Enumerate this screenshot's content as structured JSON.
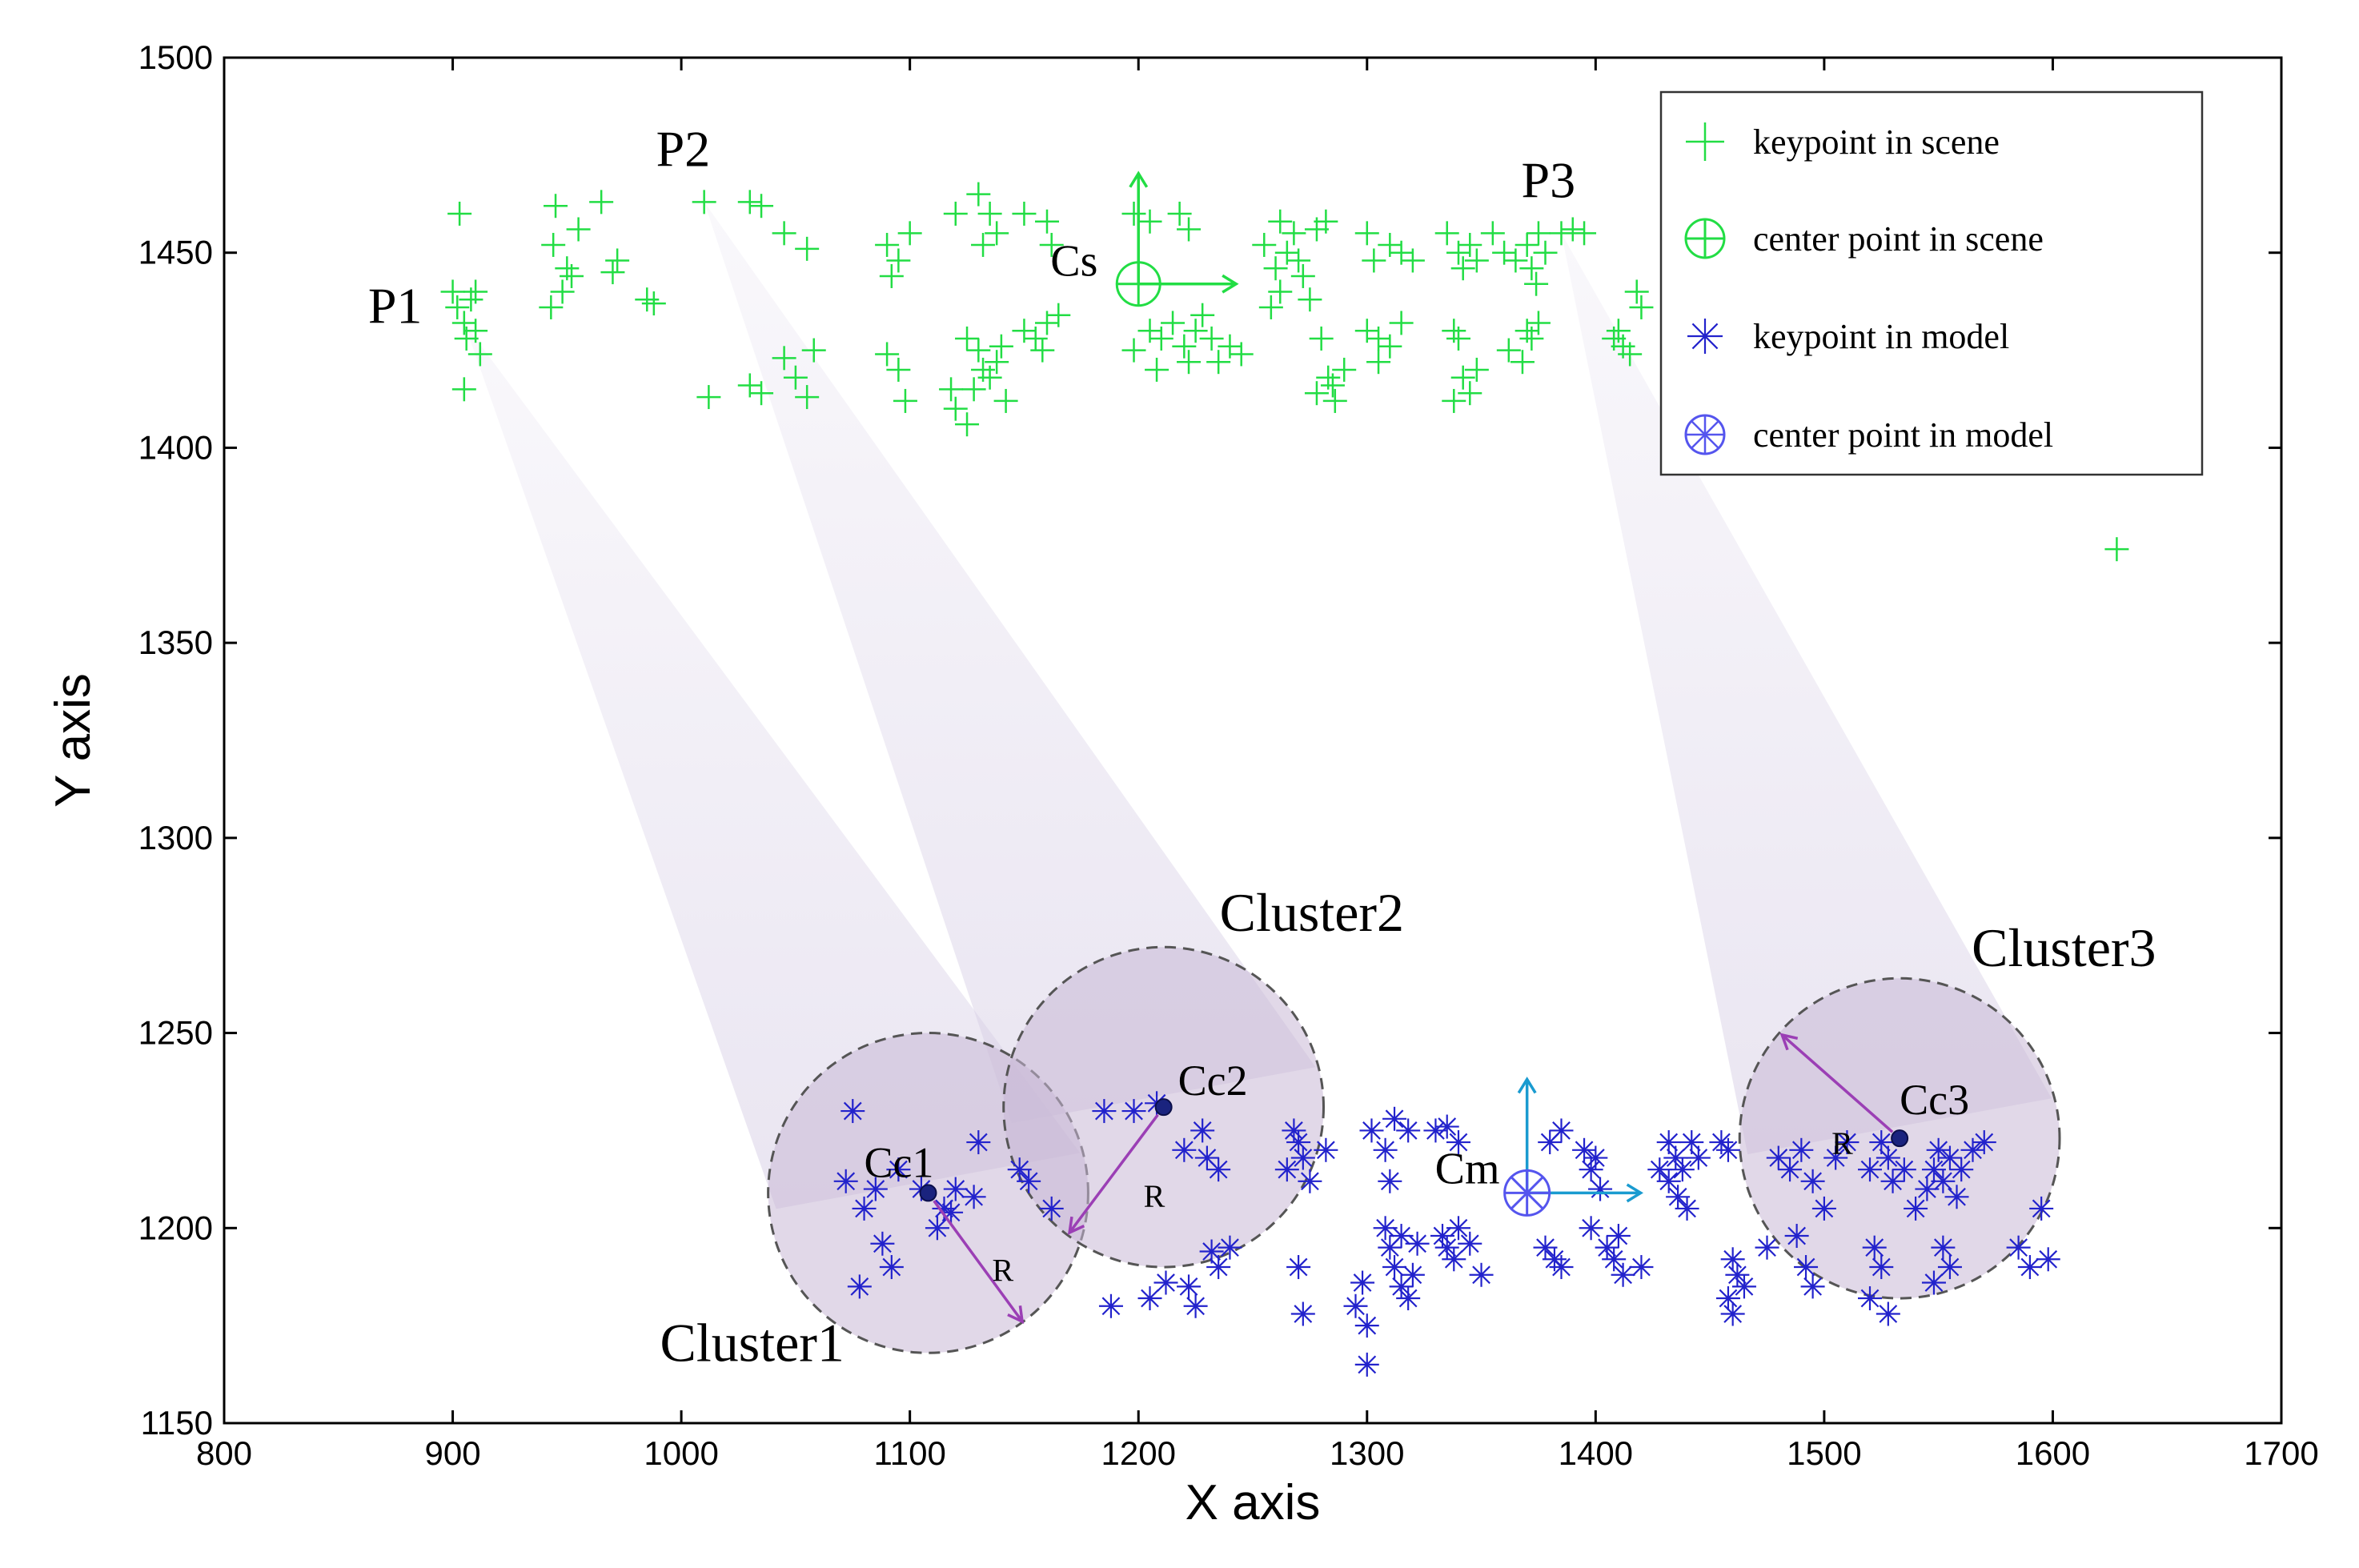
{
  "chart_data": {
    "type": "scatter",
    "xlabel": "X axis",
    "ylabel": "Y axis",
    "xlim": [
      800,
      1700
    ],
    "ylim": [
      1150,
      1500
    ],
    "xticks": [
      800,
      900,
      1000,
      1100,
      1200,
      1300,
      1400,
      1500,
      1600,
      1700
    ],
    "yticks": [
      1150,
      1200,
      1250,
      1300,
      1350,
      1400,
      1450,
      1500
    ],
    "grid": false,
    "legend": {
      "position": "top-right",
      "entries": [
        {
          "label": "keypoint in scene",
          "marker": "plus",
          "color": "#22dd44"
        },
        {
          "label": "center point in scene",
          "marker": "circle-plus",
          "color": "#22dd44"
        },
        {
          "label": "keypoint in model",
          "marker": "asterisk",
          "color": "#2222cc"
        },
        {
          "label": "center point in model",
          "marker": "circle-asterisk",
          "color": "#5555ee"
        }
      ]
    },
    "series": [
      {
        "name": "keypoint in scene",
        "marker": "plus",
        "color": "#22dd44",
        "points": [
          [
            903,
            1460
          ],
          [
            900,
            1440
          ],
          [
            902,
            1436
          ],
          [
            905,
            1432
          ],
          [
            908,
            1438
          ],
          [
            910,
            1430
          ],
          [
            912,
            1424
          ],
          [
            905,
            1415
          ],
          [
            910,
            1440
          ],
          [
            906,
            1428
          ],
          [
            945,
            1462
          ],
          [
            944,
            1452
          ],
          [
            950,
            1446
          ],
          [
            948,
            1440
          ],
          [
            943,
            1436
          ],
          [
            952,
            1444
          ],
          [
            965,
            1463
          ],
          [
            955,
            1456
          ],
          [
            972,
            1448
          ],
          [
            970,
            1445
          ],
          [
            985,
            1438
          ],
          [
            988,
            1437
          ],
          [
            1010,
            1463
          ],
          [
            1030,
            1463
          ],
          [
            1035,
            1462
          ],
          [
            1045,
            1455
          ],
          [
            1055,
            1451
          ],
          [
            1045,
            1423
          ],
          [
            1050,
            1418
          ],
          [
            1058,
            1425
          ],
          [
            1055,
            1413
          ],
          [
            1030,
            1416
          ],
          [
            1035,
            1414
          ],
          [
            1012,
            1413
          ],
          [
            1090,
            1452
          ],
          [
            1095,
            1448
          ],
          [
            1092,
            1444
          ],
          [
            1100,
            1455
          ],
          [
            1090,
            1424
          ],
          [
            1095,
            1420
          ],
          [
            1098,
            1412
          ],
          [
            1120,
            1460
          ],
          [
            1130,
            1465
          ],
          [
            1135,
            1460
          ],
          [
            1138,
            1455
          ],
          [
            1132,
            1452
          ],
          [
            1150,
            1460
          ],
          [
            1160,
            1458
          ],
          [
            1162,
            1452
          ],
          [
            1125,
            1428
          ],
          [
            1130,
            1425
          ],
          [
            1132,
            1420
          ],
          [
            1135,
            1418
          ],
          [
            1128,
            1415
          ],
          [
            1138,
            1422
          ],
          [
            1140,
            1426
          ],
          [
            1142,
            1412
          ],
          [
            1118,
            1415
          ],
          [
            1120,
            1410
          ],
          [
            1125,
            1406
          ],
          [
            1150,
            1430
          ],
          [
            1155,
            1428
          ],
          [
            1160,
            1432
          ],
          [
            1165,
            1434
          ],
          [
            1158,
            1425
          ],
          [
            1198,
            1460
          ],
          [
            1205,
            1458
          ],
          [
            1218,
            1460
          ],
          [
            1222,
            1456
          ],
          [
            1198,
            1425
          ],
          [
            1205,
            1430
          ],
          [
            1210,
            1428
          ],
          [
            1215,
            1432
          ],
          [
            1220,
            1426
          ],
          [
            1225,
            1430
          ],
          [
            1228,
            1434
          ],
          [
            1232,
            1428
          ],
          [
            1235,
            1422
          ],
          [
            1240,
            1426
          ],
          [
            1245,
            1424
          ],
          [
            1208,
            1420
          ],
          [
            1222,
            1422
          ],
          [
            1255,
            1452
          ],
          [
            1260,
            1446
          ],
          [
            1262,
            1440
          ],
          [
            1265,
            1450
          ],
          [
            1268,
            1455
          ],
          [
            1270,
            1448
          ],
          [
            1272,
            1444
          ],
          [
            1275,
            1438
          ],
          [
            1262,
            1458
          ],
          [
            1258,
            1436
          ],
          [
            1278,
            1456
          ],
          [
            1282,
            1458
          ],
          [
            1280,
            1428
          ],
          [
            1283,
            1418
          ],
          [
            1278,
            1414
          ],
          [
            1285,
            1416
          ],
          [
            1290,
            1420
          ],
          [
            1286,
            1412
          ],
          [
            1300,
            1455
          ],
          [
            1303,
            1448
          ],
          [
            1310,
            1452
          ],
          [
            1315,
            1450
          ],
          [
            1320,
            1448
          ],
          [
            1300,
            1430
          ],
          [
            1305,
            1428
          ],
          [
            1310,
            1426
          ],
          [
            1315,
            1432
          ],
          [
            1305,
            1422
          ],
          [
            1335,
            1455
          ],
          [
            1340,
            1450
          ],
          [
            1342,
            1446
          ],
          [
            1345,
            1452
          ],
          [
            1348,
            1448
          ],
          [
            1338,
            1430
          ],
          [
            1340,
            1428
          ],
          [
            1342,
            1418
          ],
          [
            1345,
            1414
          ],
          [
            1338,
            1412
          ],
          [
            1348,
            1420
          ],
          [
            1355,
            1455
          ],
          [
            1360,
            1450
          ],
          [
            1365,
            1448
          ],
          [
            1370,
            1452
          ],
          [
            1372,
            1446
          ],
          [
            1375,
            1455
          ],
          [
            1378,
            1450
          ],
          [
            1374,
            1442
          ],
          [
            1370,
            1430
          ],
          [
            1372,
            1428
          ],
          [
            1375,
            1432
          ],
          [
            1368,
            1422
          ],
          [
            1362,
            1425
          ],
          [
            1385,
            1455
          ],
          [
            1390,
            1456
          ],
          [
            1395,
            1455
          ],
          [
            1410,
            1430
          ],
          [
            1412,
            1426
          ],
          [
            1418,
            1440
          ],
          [
            1420,
            1436
          ],
          [
            1415,
            1424
          ],
          [
            1408,
            1428
          ],
          [
            1628,
            1374
          ]
        ]
      },
      {
        "name": "keypoint in model",
        "marker": "asterisk",
        "color": "#2222cc",
        "points": [
          [
            1075,
            1230
          ],
          [
            1080,
            1205
          ],
          [
            1085,
            1210
          ],
          [
            1078,
            1185
          ],
          [
            1088,
            1196
          ],
          [
            1092,
            1190
          ],
          [
            1095,
            1215
          ],
          [
            1105,
            1210
          ],
          [
            1115,
            1205
          ],
          [
            1120,
            1210
          ],
          [
            1130,
            1222
          ],
          [
            1128,
            1208
          ],
          [
            1148,
            1215
          ],
          [
            1152,
            1212
          ],
          [
            1162,
            1205
          ],
          [
            1112,
            1200
          ],
          [
            1118,
            1204
          ],
          [
            1072,
            1212
          ],
          [
            1185,
            1230
          ],
          [
            1198,
            1230
          ],
          [
            1208,
            1232
          ],
          [
            1220,
            1220
          ],
          [
            1228,
            1225
          ],
          [
            1230,
            1218
          ],
          [
            1235,
            1215
          ],
          [
            1188,
            1180
          ],
          [
            1205,
            1182
          ],
          [
            1212,
            1186
          ],
          [
            1222,
            1185
          ],
          [
            1225,
            1180
          ],
          [
            1232,
            1194
          ],
          [
            1235,
            1190
          ],
          [
            1240,
            1195
          ],
          [
            1265,
            1215
          ],
          [
            1270,
            1222
          ],
          [
            1272,
            1218
          ],
          [
            1275,
            1212
          ],
          [
            1268,
            1225
          ],
          [
            1282,
            1220
          ],
          [
            1270,
            1190
          ],
          [
            1272,
            1178
          ],
          [
            1295,
            1180
          ],
          [
            1300,
            1175
          ],
          [
            1298,
            1186
          ],
          [
            1300,
            1165
          ],
          [
            1302,
            1225
          ],
          [
            1308,
            1220
          ],
          [
            1312,
            1228
          ],
          [
            1318,
            1225
          ],
          [
            1310,
            1212
          ],
          [
            1308,
            1200
          ],
          [
            1310,
            1195
          ],
          [
            1312,
            1190
          ],
          [
            1315,
            1185
          ],
          [
            1318,
            1182
          ],
          [
            1320,
            1188
          ],
          [
            1322,
            1196
          ],
          [
            1315,
            1198
          ],
          [
            1330,
            1225
          ],
          [
            1335,
            1226
          ],
          [
            1340,
            1222
          ],
          [
            1333,
            1198
          ],
          [
            1335,
            1195
          ],
          [
            1338,
            1192
          ],
          [
            1340,
            1200
          ],
          [
            1345,
            1196
          ],
          [
            1350,
            1188
          ],
          [
            1378,
            1195
          ],
          [
            1382,
            1192
          ],
          [
            1385,
            1190
          ],
          [
            1380,
            1222
          ],
          [
            1385,
            1225
          ],
          [
            1395,
            1220
          ],
          [
            1398,
            1215
          ],
          [
            1400,
            1218
          ],
          [
            1402,
            1210
          ],
          [
            1405,
            1195
          ],
          [
            1408,
            1192
          ],
          [
            1410,
            1198
          ],
          [
            1412,
            1188
          ],
          [
            1398,
            1200
          ],
          [
            1420,
            1190
          ],
          [
            1428,
            1215
          ],
          [
            1432,
            1212
          ],
          [
            1435,
            1218
          ],
          [
            1438,
            1215
          ],
          [
            1440,
            1205
          ],
          [
            1442,
            1222
          ],
          [
            1445,
            1218
          ],
          [
            1436,
            1208
          ],
          [
            1432,
            1222
          ],
          [
            1455,
            1222
          ],
          [
            1458,
            1220
          ],
          [
            1460,
            1192
          ],
          [
            1462,
            1188
          ],
          [
            1458,
            1182
          ],
          [
            1465,
            1185
          ],
          [
            1460,
            1178
          ],
          [
            1475,
            1195
          ],
          [
            1480,
            1218
          ],
          [
            1485,
            1215
          ],
          [
            1490,
            1220
          ],
          [
            1495,
            1212
          ],
          [
            1500,
            1205
          ],
          [
            1505,
            1218
          ],
          [
            1510,
            1222
          ],
          [
            1492,
            1190
          ],
          [
            1495,
            1185
          ],
          [
            1488,
            1198
          ],
          [
            1520,
            1215
          ],
          [
            1525,
            1222
          ],
          [
            1528,
            1218
          ],
          [
            1530,
            1212
          ],
          [
            1535,
            1215
          ],
          [
            1522,
            1195
          ],
          [
            1525,
            1190
          ],
          [
            1520,
            1182
          ],
          [
            1528,
            1178
          ],
          [
            1540,
            1205
          ],
          [
            1545,
            1210
          ],
          [
            1548,
            1215
          ],
          [
            1550,
            1220
          ],
          [
            1552,
            1212
          ],
          [
            1555,
            1218
          ],
          [
            1558,
            1208
          ],
          [
            1560,
            1215
          ],
          [
            1552,
            1195
          ],
          [
            1555,
            1190
          ],
          [
            1548,
            1186
          ],
          [
            1565,
            1220
          ],
          [
            1570,
            1222
          ],
          [
            1585,
            1195
          ],
          [
            1590,
            1190
          ],
          [
            1595,
            1205
          ],
          [
            1598,
            1192
          ]
        ]
      }
    ],
    "centers": [
      {
        "label": "Cs",
        "x": 1200,
        "y": 1442,
        "marker": "circle-plus",
        "color": "#22dd44"
      },
      {
        "label": "Cm",
        "x": 1370,
        "y": 1209,
        "marker": "circle-asterisk",
        "color": "#5555ee"
      }
    ],
    "clusters": [
      {
        "label": "Cluster1",
        "center_label": "Cc1",
        "center": [
          1108,
          1209
        ],
        "radius": 70,
        "r_label": "R"
      },
      {
        "label": "Cluster2",
        "center_label": "Cc2",
        "center": [
          1211,
          1231
        ],
        "radius": 70,
        "r_label": "R"
      },
      {
        "label": "Cluster3",
        "center_label": "Cc3",
        "center": [
          1533,
          1223
        ],
        "radius": 70,
        "r_label": "R"
      }
    ],
    "point_labels": [
      {
        "label": "P1",
        "x": 905,
        "y": 1432
      },
      {
        "label": "P2",
        "x": 1010,
        "y": 1463
      },
      {
        "label": "P3",
        "x": 1385,
        "y": 1455
      }
    ]
  }
}
